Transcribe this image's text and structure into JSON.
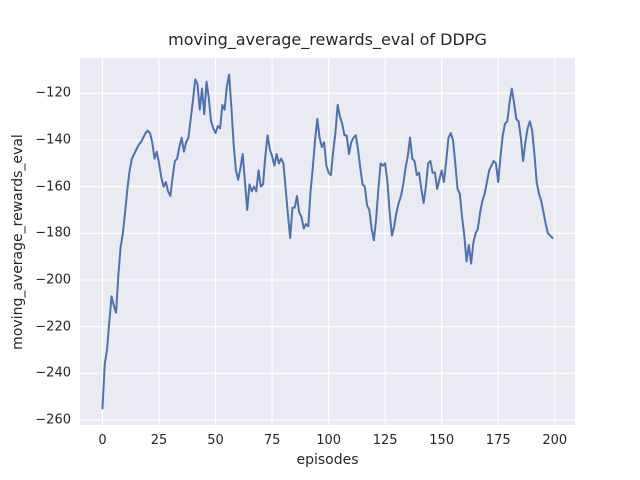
{
  "figure": {
    "background": "#ffffff"
  },
  "chart_data": {
    "type": "line",
    "title": "moving_average_rewards_eval of DDPG",
    "xlabel": "episodes",
    "ylabel": "moving_average_rewards_eval",
    "grid": true,
    "legend": null,
    "xticks": [
      0,
      25,
      50,
      75,
      100,
      125,
      150,
      175,
      200
    ],
    "yticks": [
      -120,
      -140,
      -160,
      -180,
      -200,
      -220,
      -240,
      -260
    ],
    "xlim": [
      -9.95,
      208.95
    ],
    "ylim": [
      -262.15,
      -104.85
    ],
    "style": {
      "axes_bg": "#eaeaf2",
      "grid_color": "#ffffff",
      "line_color": "#4c72b0",
      "text_color": "#262626"
    },
    "series": [
      {
        "name": "moving_average_rewards_eval",
        "x_start": 0,
        "x_step": 1,
        "values": [
          -255,
          -236,
          -230,
          -218,
          -207,
          -211,
          -214,
          -198,
          -186,
          -180,
          -171,
          -161,
          -153,
          -148,
          -146,
          -144,
          -142,
          -141,
          -139,
          -137,
          -136,
          -137,
          -141,
          -148,
          -145,
          -150,
          -156,
          -160,
          -158,
          -162,
          -164,
          -156,
          -149,
          -148,
          -143,
          -139,
          -145,
          -141,
          -139,
          -131,
          -123,
          -114,
          -116,
          -127,
          -118,
          -129,
          -115,
          -122,
          -132,
          -135,
          -137,
          -134,
          -135,
          -125,
          -127,
          -117,
          -112,
          -126,
          -142,
          -153,
          -157,
          -152,
          -146,
          -158,
          -170,
          -159,
          -162,
          -160,
          -162,
          -153,
          -160,
          -159,
          -147,
          -138,
          -144,
          -147,
          -151,
          -146,
          -150,
          -148,
          -150,
          -161,
          -172,
          -182,
          -169,
          -169,
          -164,
          -171,
          -173,
          -178,
          -176,
          -177,
          -162,
          -152,
          -140,
          -131,
          -139,
          -143,
          -141,
          -151,
          -154,
          -155,
          -145,
          -137,
          -125,
          -130,
          -133,
          -138,
          -138,
          -146,
          -141,
          -139,
          -138,
          -144,
          -152,
          -159,
          -160,
          -168,
          -170,
          -178,
          -183,
          -174,
          -161,
          -150,
          -151,
          -150,
          -158,
          -171,
          -181,
          -177,
          -171,
          -167,
          -164,
          -159,
          -152,
          -147,
          -139,
          -148,
          -149,
          -155,
          -154,
          -161,
          -167,
          -160,
          -150,
          -149,
          -154,
          -154,
          -161,
          -157,
          -153,
          -158,
          -149,
          -139,
          -137,
          -140,
          -150,
          -161,
          -163,
          -173,
          -181,
          -192,
          -185,
          -193,
          -184,
          -180,
          -178,
          -171,
          -166,
          -163,
          -158,
          -153,
          -151,
          -149,
          -150,
          -158,
          -147,
          -138,
          -133,
          -132,
          -124,
          -118,
          -124,
          -131,
          -132,
          -139,
          -149,
          -141,
          -135,
          -132,
          -136,
          -146,
          -158,
          -163,
          -166,
          -171,
          -176,
          -180,
          -181,
          -182
        ]
      }
    ]
  }
}
